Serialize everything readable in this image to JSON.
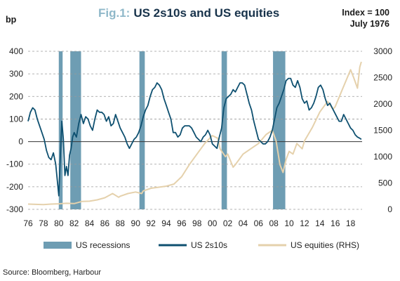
{
  "chart_data": {
    "type": "line",
    "title_prefix": "Fig.1:",
    "title": "US 2s10s and US equities",
    "note_line1": "Index = 100",
    "note_line2": "July 1976",
    "ylabel": "bp",
    "source": "Source: Bloomberg, Harbour",
    "ylim_left": [
      -300,
      400
    ],
    "ylim_right": [
      0,
      3000
    ],
    "xlim": [
      1976,
      2019.5
    ],
    "grid": true,
    "legend_position": "bottom",
    "y_ticks_left": [
      -300,
      -200,
      -100,
      0,
      100,
      200,
      300,
      400
    ],
    "y_ticks_right": [
      0,
      500,
      1000,
      1500,
      2000,
      2500,
      3000
    ],
    "x_tick_labels": [
      "76",
      "78",
      "80",
      "82",
      "84",
      "86",
      "88",
      "90",
      "92",
      "94",
      "96",
      "98",
      "00",
      "02",
      "04",
      "06",
      "08",
      "10",
      "12",
      "14",
      "16",
      "18"
    ],
    "recessions": [
      {
        "start": 1980.0,
        "end": 1980.5
      },
      {
        "start": 1981.5,
        "end": 1982.9
      },
      {
        "start": 1990.5,
        "end": 1991.2
      },
      {
        "start": 2001.2,
        "end": 2001.9
      },
      {
        "start": 2007.9,
        "end": 2009.5
      }
    ],
    "series": [
      {
        "name": "US recessions",
        "kind": "band",
        "color": "#6e9db3"
      },
      {
        "name": "US 2s10s",
        "axis": "left",
        "color": "#0e5070",
        "points": [
          [
            1976.0,
            90
          ],
          [
            1976.3,
            130
          ],
          [
            1976.6,
            150
          ],
          [
            1976.9,
            140
          ],
          [
            1977.2,
            100
          ],
          [
            1977.5,
            70
          ],
          [
            1977.8,
            40
          ],
          [
            1978.1,
            10
          ],
          [
            1978.4,
            -40
          ],
          [
            1978.7,
            -70
          ],
          [
            1979.0,
            -80
          ],
          [
            1979.3,
            -50
          ],
          [
            1979.6,
            -100
          ],
          [
            1979.8,
            -170
          ],
          [
            1980.0,
            -240
          ],
          [
            1980.2,
            -60
          ],
          [
            1980.4,
            90
          ],
          [
            1980.6,
            10
          ],
          [
            1980.8,
            -150
          ],
          [
            1981.0,
            -110
          ],
          [
            1981.2,
            -150
          ],
          [
            1981.4,
            -60
          ],
          [
            1981.6,
            -30
          ],
          [
            1981.8,
            20
          ],
          [
            1982.0,
            40
          ],
          [
            1982.3,
            20
          ],
          [
            1982.6,
            80
          ],
          [
            1982.9,
            120
          ],
          [
            1983.2,
            80
          ],
          [
            1983.5,
            110
          ],
          [
            1983.8,
            100
          ],
          [
            1984.1,
            70
          ],
          [
            1984.4,
            50
          ],
          [
            1984.7,
            100
          ],
          [
            1985.0,
            140
          ],
          [
            1985.3,
            130
          ],
          [
            1985.6,
            130
          ],
          [
            1985.9,
            120
          ],
          [
            1986.2,
            90
          ],
          [
            1986.5,
            110
          ],
          [
            1986.8,
            70
          ],
          [
            1987.1,
            80
          ],
          [
            1987.4,
            120
          ],
          [
            1987.7,
            90
          ],
          [
            1988.0,
            60
          ],
          [
            1988.3,
            40
          ],
          [
            1988.6,
            20
          ],
          [
            1988.9,
            -10
          ],
          [
            1989.2,
            -30
          ],
          [
            1989.5,
            -10
          ],
          [
            1989.8,
            10
          ],
          [
            1990.1,
            20
          ],
          [
            1990.4,
            40
          ],
          [
            1990.7,
            70
          ],
          [
            1991.0,
            110
          ],
          [
            1991.3,
            140
          ],
          [
            1991.6,
            160
          ],
          [
            1991.9,
            200
          ],
          [
            1992.2,
            230
          ],
          [
            1992.5,
            240
          ],
          [
            1992.8,
            260
          ],
          [
            1993.1,
            250
          ],
          [
            1993.4,
            230
          ],
          [
            1993.7,
            190
          ],
          [
            1994.0,
            160
          ],
          [
            1994.3,
            130
          ],
          [
            1994.6,
            100
          ],
          [
            1994.9,
            40
          ],
          [
            1995.2,
            40
          ],
          [
            1995.5,
            20
          ],
          [
            1995.8,
            30
          ],
          [
            1996.1,
            60
          ],
          [
            1996.4,
            70
          ],
          [
            1996.7,
            70
          ],
          [
            1997.0,
            70
          ],
          [
            1997.3,
            60
          ],
          [
            1997.6,
            40
          ],
          [
            1997.9,
            20
          ],
          [
            1998.2,
            10
          ],
          [
            1998.5,
            0
          ],
          [
            1998.8,
            20
          ],
          [
            1999.1,
            30
          ],
          [
            1999.4,
            50
          ],
          [
            1999.7,
            30
          ],
          [
            2000.0,
            -10
          ],
          [
            2000.3,
            -20
          ],
          [
            2000.6,
            -30
          ],
          [
            2000.9,
            20
          ],
          [
            2001.2,
            60
          ],
          [
            2001.5,
            150
          ],
          [
            2001.8,
            190
          ],
          [
            2002.1,
            200
          ],
          [
            2002.4,
            210
          ],
          [
            2002.7,
            230
          ],
          [
            2003.0,
            220
          ],
          [
            2003.3,
            240
          ],
          [
            2003.6,
            260
          ],
          [
            2003.9,
            260
          ],
          [
            2004.2,
            250
          ],
          [
            2004.5,
            210
          ],
          [
            2004.8,
            170
          ],
          [
            2005.1,
            140
          ],
          [
            2005.4,
            90
          ],
          [
            2005.7,
            50
          ],
          [
            2006.0,
            10
          ],
          [
            2006.3,
            0
          ],
          [
            2006.6,
            -10
          ],
          [
            2006.9,
            -10
          ],
          [
            2007.2,
            0
          ],
          [
            2007.5,
            20
          ],
          [
            2007.8,
            50
          ],
          [
            2008.1,
            100
          ],
          [
            2008.4,
            150
          ],
          [
            2008.7,
            170
          ],
          [
            2009.0,
            200
          ],
          [
            2009.3,
            230
          ],
          [
            2009.6,
            270
          ],
          [
            2009.9,
            280
          ],
          [
            2010.2,
            280
          ],
          [
            2010.5,
            250
          ],
          [
            2010.8,
            240
          ],
          [
            2011.1,
            270
          ],
          [
            2011.4,
            240
          ],
          [
            2011.7,
            190
          ],
          [
            2012.0,
            170
          ],
          [
            2012.3,
            180
          ],
          [
            2012.6,
            140
          ],
          [
            2012.9,
            150
          ],
          [
            2013.2,
            170
          ],
          [
            2013.5,
            200
          ],
          [
            2013.8,
            240
          ],
          [
            2014.1,
            250
          ],
          [
            2014.4,
            230
          ],
          [
            2014.7,
            190
          ],
          [
            2015.0,
            160
          ],
          [
            2015.3,
            170
          ],
          [
            2015.6,
            150
          ],
          [
            2015.9,
            130
          ],
          [
            2016.2,
            110
          ],
          [
            2016.5,
            90
          ],
          [
            2016.8,
            90
          ],
          [
            2017.1,
            120
          ],
          [
            2017.4,
            100
          ],
          [
            2017.7,
            80
          ],
          [
            2018.0,
            60
          ],
          [
            2018.3,
            50
          ],
          [
            2018.6,
            30
          ],
          [
            2018.9,
            20
          ],
          [
            2019.2,
            15
          ],
          [
            2019.4,
            10
          ]
        ]
      },
      {
        "name": "US equities (RHS)",
        "axis": "right",
        "color": "#e5d1ac",
        "points": [
          [
            1976.0,
            100
          ],
          [
            1977.0,
            95
          ],
          [
            1978.0,
            90
          ],
          [
            1979.0,
            100
          ],
          [
            1980.0,
            105
          ],
          [
            1981.0,
            115
          ],
          [
            1982.0,
            110
          ],
          [
            1983.0,
            150
          ],
          [
            1984.0,
            155
          ],
          [
            1985.0,
            180
          ],
          [
            1986.0,
            220
          ],
          [
            1987.0,
            300
          ],
          [
            1987.8,
            230
          ],
          [
            1988.0,
            250
          ],
          [
            1989.0,
            300
          ],
          [
            1990.0,
            330
          ],
          [
            1990.8,
            300
          ],
          [
            1991.0,
            350
          ],
          [
            1992.0,
            400
          ],
          [
            1993.0,
            420
          ],
          [
            1994.0,
            440
          ],
          [
            1995.0,
            480
          ],
          [
            1996.0,
            620
          ],
          [
            1997.0,
            850
          ],
          [
            1998.0,
            1050
          ],
          [
            1999.0,
            1250
          ],
          [
            2000.0,
            1400
          ],
          [
            2000.7,
            1350
          ],
          [
            2001.0,
            1150
          ],
          [
            2001.7,
            1000
          ],
          [
            2002.0,
            1050
          ],
          [
            2002.7,
            800
          ],
          [
            2003.0,
            850
          ],
          [
            2004.0,
            1050
          ],
          [
            2005.0,
            1150
          ],
          [
            2006.0,
            1250
          ],
          [
            2007.0,
            1420
          ],
          [
            2007.8,
            1500
          ],
          [
            2008.3,
            1300
          ],
          [
            2008.8,
            850
          ],
          [
            2009.2,
            700
          ],
          [
            2009.6,
            950
          ],
          [
            2010.0,
            1100
          ],
          [
            2010.5,
            1050
          ],
          [
            2011.0,
            1250
          ],
          [
            2011.7,
            1150
          ],
          [
            2012.0,
            1300
          ],
          [
            2013.0,
            1550
          ],
          [
            2014.0,
            1850
          ],
          [
            2015.0,
            2050
          ],
          [
            2015.7,
            1900
          ],
          [
            2016.0,
            1950
          ],
          [
            2017.0,
            2300
          ],
          [
            2018.0,
            2650
          ],
          [
            2018.4,
            2500
          ],
          [
            2018.9,
            2300
          ],
          [
            2019.2,
            2700
          ],
          [
            2019.4,
            2800
          ]
        ]
      }
    ]
  }
}
